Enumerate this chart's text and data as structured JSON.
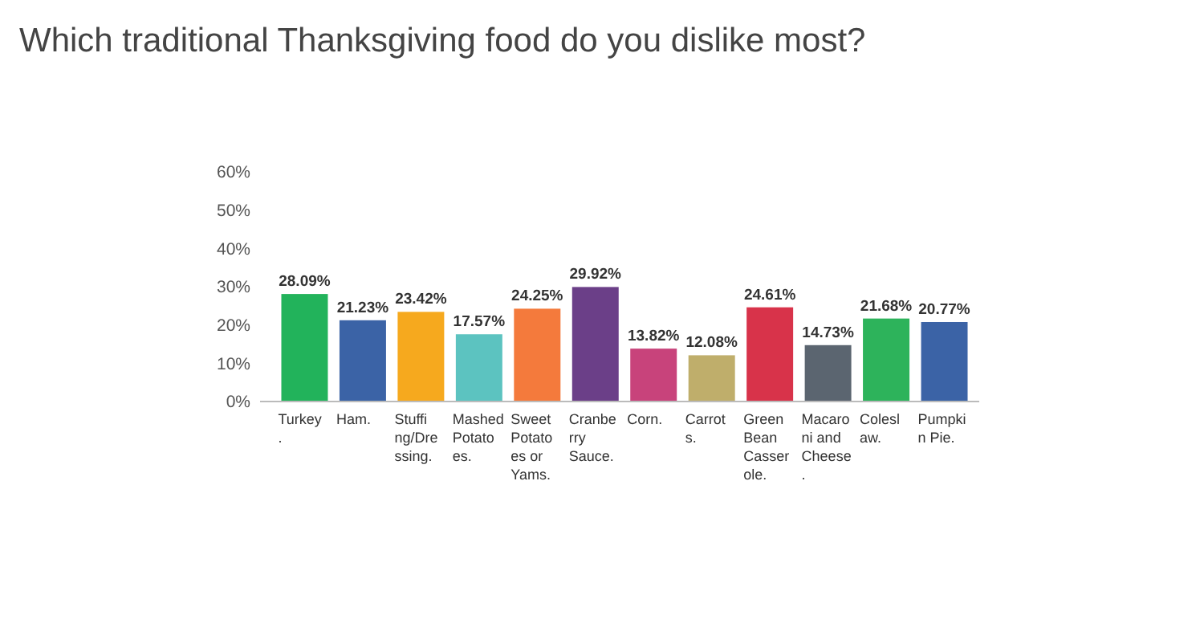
{
  "chart_data": {
    "type": "bar",
    "title": "Which traditional Thanksgiving food do you dislike most?",
    "categories": [
      "Turkey.",
      "Ham.",
      "Stuffing/Dressing.",
      "Mashed Potatoes.",
      "Sweet Potatoes or Yams.",
      "Cranberry Sauce.",
      "Corn.",
      "Carrots.",
      "Green Bean Casserole.",
      "Macaroni and Cheese.",
      "Coleslaw.",
      "Pumpkin Pie."
    ],
    "values": [
      28.09,
      21.23,
      23.42,
      17.57,
      24.25,
      29.92,
      13.82,
      12.08,
      24.61,
      14.73,
      21.68,
      20.77
    ],
    "value_labels": [
      "28.09%",
      "21.23%",
      "23.42%",
      "17.57%",
      "24.25%",
      "29.92%",
      "13.82%",
      "12.08%",
      "24.61%",
      "14.73%",
      "21.68%",
      "20.77%"
    ],
    "colors": [
      "#22b35b",
      "#3b63a6",
      "#f6a91e",
      "#5cc3c0",
      "#f47a3c",
      "#6b3f88",
      "#c8437b",
      "#bfae6b",
      "#d8334a",
      "#5b6570",
      "#2db35b",
      "#3b63a6"
    ],
    "ylim": [
      0,
      60
    ],
    "yticks": [
      {
        "value": 0,
        "label": "0%"
      },
      {
        "value": 10,
        "label": "10%"
      },
      {
        "value": 20,
        "label": "20%"
      },
      {
        "value": 30,
        "label": "30%"
      },
      {
        "value": 40,
        "label": "40%"
      },
      {
        "value": 50,
        "label": "50%"
      },
      {
        "value": 60,
        "label": "60%"
      }
    ],
    "grid": false
  }
}
